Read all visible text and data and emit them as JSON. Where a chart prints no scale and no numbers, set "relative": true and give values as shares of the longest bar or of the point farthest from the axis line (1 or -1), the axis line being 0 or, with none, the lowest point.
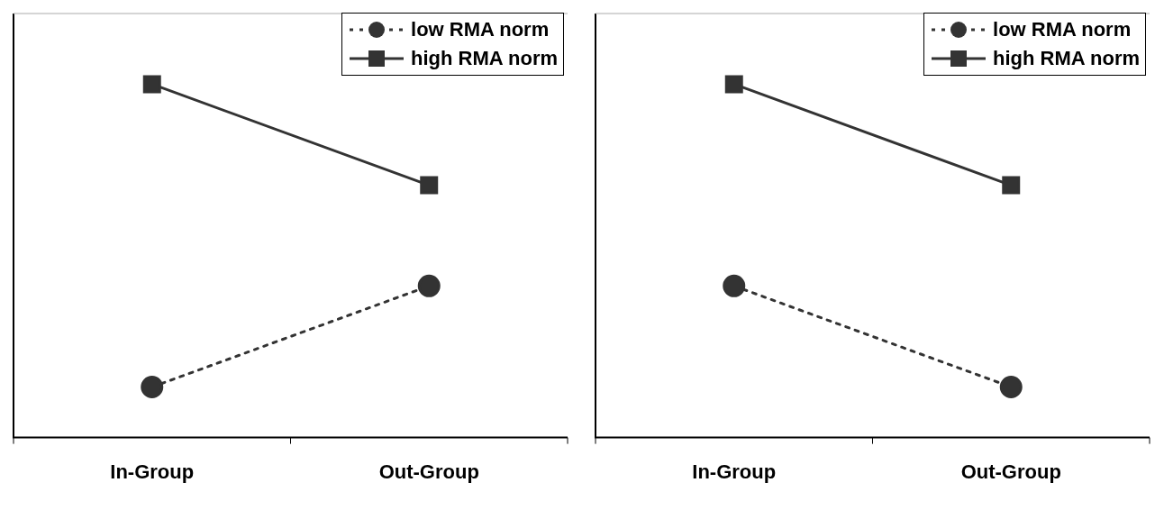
{
  "chart_data": [
    {
      "type": "line",
      "relative": true,
      "categories": [
        "In-Group",
        "Out-Group"
      ],
      "legend": "top right",
      "series": [
        {
          "name": "low RMA norm",
          "color": "#333333",
          "marker": "circle",
          "line_style": "dotted",
          "values": [
            0.143,
            0.429
          ]
        },
        {
          "name": "high RMA norm",
          "color": "#333333",
          "marker": "square",
          "line_style": "solid",
          "values": [
            1,
            0.714
          ]
        }
      ]
    },
    {
      "type": "line",
      "relative": true,
      "categories": [
        "In-Group",
        "Out-Group"
      ],
      "legend": "top right",
      "series": [
        {
          "name": "low RMA norm",
          "color": "#333333",
          "marker": "circle",
          "line_style": "dotted",
          "values": [
            0.429,
            0.143
          ]
        },
        {
          "name": "high RMA norm",
          "color": "#333333",
          "marker": "square",
          "line_style": "solid",
          "values": [
            1,
            0.714
          ]
        }
      ]
    }
  ]
}
